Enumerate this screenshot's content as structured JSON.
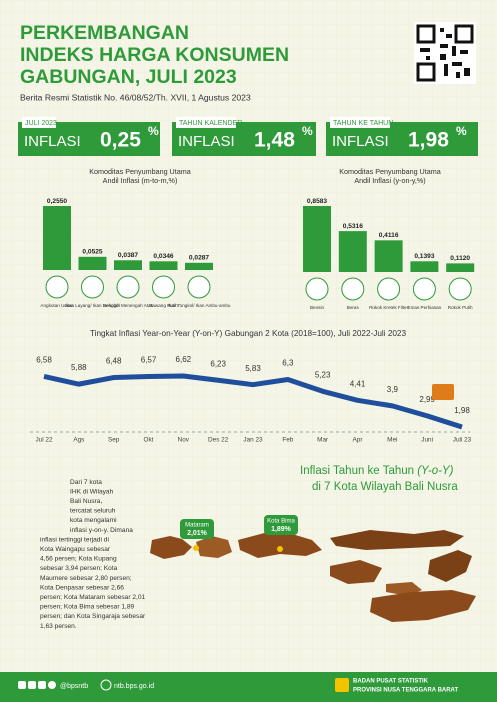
{
  "header": {
    "title": [
      "PERKEMBANGAN",
      "INDEKS HARGA KONSUMEN",
      "GABUNGAN, JULI 2023"
    ],
    "subtitle": "Berita Resmi Statistik No. 46/08/52/Th. XVII, 1 Agustus 2023"
  },
  "stats": [
    {
      "period": "JULI 2023",
      "label": "INFLASI",
      "value": "0,25",
      "unit": "%"
    },
    {
      "period": "TAHUN KALENDER",
      "label": "INFLASI",
      "value": "1,48",
      "unit": "%"
    },
    {
      "period": "TAHUN KE TAHUN",
      "label": "INFLASI",
      "value": "1,98",
      "unit": "%"
    }
  ],
  "chart_data": [
    {
      "type": "bar",
      "title": [
        "Komoditas Penyumbang Utama",
        "Andil Inflasi (m-to-m,%)"
      ],
      "color": "#2e9a3a",
      "categories": [
        "Angkutan Udara",
        "Ikan Layang/ Ikan Benggol",
        "Sekolah Menengah Atas",
        "Bawang Putih",
        "Ikan Tongkol/ Ikan Ambu-ambu"
      ],
      "values": [
        0.255,
        0.0525,
        0.0387,
        0.0346,
        0.0287
      ],
      "value_labels": [
        "0,2550",
        "0,0525",
        "0,0387",
        "0,0346",
        "0,0287"
      ]
    },
    {
      "type": "bar",
      "title": [
        "Komoditas Penyumbang Utama",
        "Andil Inflasi (y-on-y,%)"
      ],
      "color": "#2e9a3a",
      "categories": [
        "Bensin",
        "Beras",
        "Rokok Kretek Filter",
        "Emas Perhiasan",
        "Rokok Putih"
      ],
      "values": [
        0.8583,
        0.5316,
        0.4116,
        0.1393,
        0.112
      ],
      "value_labels": [
        "0,8583",
        "0,5316",
        "0,4116",
        "0,1393",
        "0,1120"
      ]
    },
    {
      "type": "line",
      "title": "Tingkat Inflasi Year-on-Year (Y-on-Y) Gabungan 2 Kota (2018=100), Juli 2022-Juli 2023",
      "color": "#1f4e9c",
      "categories": [
        "Jul 22",
        "Ags",
        "Sep",
        "Okt",
        "Nov",
        "Des 22",
        "Jan 23",
        "Feb",
        "Mar",
        "Apr",
        "Mei",
        "Juni",
        "Juli 23"
      ],
      "values": [
        6.58,
        5.88,
        6.48,
        6.57,
        6.62,
        6.23,
        5.83,
        6.3,
        5.23,
        4.41,
        3.9,
        2.99,
        1.98
      ],
      "value_labels": [
        "6,58",
        "5,88",
        "6,48",
        "6,57",
        "6,62",
        "6,23",
        "5,83",
        "6,3",
        "5,23",
        "4,41",
        "3,9",
        "2,99",
        "1,98"
      ]
    }
  ],
  "map": {
    "title": [
      "Inflasi Tahun ke Tahun ",
      "(Y-o-Y)",
      "",
      "di 7 Kota Wilayah Bali Nusra"
    ],
    "paragraph": [
      "Dari 7 kota",
      "IHK di Wilayah",
      "Bali Nusra,",
      "tercatat seluruh",
      "kota mengalami",
      "inflasi y-on-y. Dimana",
      "inflasi tertinggi terjadi di",
      "Kota Waingapu sebesar",
      "4,56 persen; Kota Kupang",
      "sebesar 3,94 persen; Kota",
      "Maumere sebesar 2,80 persen;",
      "Kota Denpasar sebesar 2,66",
      "persen; Kota Mataram sebesar 2,01",
      "persen; Kota Bima sebesar 1,89",
      "persen; dan Kota Singaraja sebesar",
      "1,63 persen."
    ],
    "callouts": [
      {
        "city": "Mataram",
        "value": "2,01%"
      },
      {
        "city": "Kota Bima",
        "value": "1,89%"
      }
    ]
  },
  "footer": {
    "handle": "@bpsntb",
    "website": "ntb.bps.go.id",
    "org": [
      "BADAN PUSAT STATISTIK",
      "PROVINSI NUSA TENGGARA BARAT"
    ]
  }
}
